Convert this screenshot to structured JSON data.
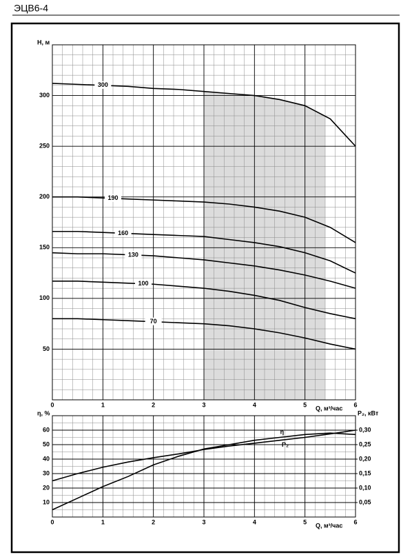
{
  "header": {
    "title": "ЭЦВ6-4"
  },
  "chart_data": [
    {
      "type": "line",
      "x_label": "Q, м³/час",
      "y_label": "H, м",
      "x": [
        0,
        0.5,
        1,
        1.5,
        2,
        2.5,
        3,
        3.5,
        4,
        4.5,
        5,
        5.5,
        6
      ],
      "xlim": [
        0,
        6
      ],
      "xticks": [
        0,
        1,
        2,
        3,
        4,
        5,
        6
      ],
      "ylim": [
        0,
        350
      ],
      "yticks": [
        50,
        100,
        150,
        200,
        250,
        300
      ],
      "grid": true,
      "shaded_range": [
        3,
        5.4
      ],
      "series": [
        {
          "name": "300",
          "color": "#000000",
          "values": [
            312,
            311,
            310,
            309,
            307,
            306,
            304,
            302,
            300,
            296,
            290,
            277,
            250
          ]
        },
        {
          "name": "190",
          "color": "#000000",
          "values": [
            200,
            200,
            199,
            198,
            197,
            196,
            195,
            193,
            190,
            186,
            180,
            170,
            155
          ]
        },
        {
          "name": "160",
          "color": "#000000",
          "values": [
            166,
            166,
            165,
            164,
            163,
            162,
            161,
            158,
            155,
            151,
            145,
            137,
            125
          ]
        },
        {
          "name": "130",
          "color": "#000000",
          "values": [
            145,
            144,
            144,
            143,
            142,
            140,
            138,
            135,
            132,
            128,
            123,
            117,
            110
          ]
        },
        {
          "name": "100",
          "color": "#000000",
          "values": [
            117,
            117,
            116,
            115,
            114,
            112,
            110,
            107,
            103,
            98,
            91,
            85,
            80
          ]
        },
        {
          "name": "70",
          "color": "#000000",
          "values": [
            80,
            80,
            79,
            78,
            77,
            76,
            75,
            73,
            70,
            66,
            61,
            55,
            50
          ]
        }
      ]
    },
    {
      "type": "line",
      "x_label": "Q, м³/час",
      "y_label": "η, %",
      "y2_label": "P₂, кВт",
      "x": [
        0,
        0.5,
        1,
        1.5,
        2,
        2.5,
        3,
        3.5,
        4,
        4.5,
        5,
        5.5,
        6
      ],
      "xlim": [
        0,
        6
      ],
      "xticks": [
        0,
        1,
        2,
        3,
        4,
        5,
        6
      ],
      "ylim": [
        0,
        70
      ],
      "yticks": [
        10,
        20,
        30,
        40,
        50,
        60
      ],
      "y2lim": [
        0,
        0.35
      ],
      "y2ticks": [
        {
          "value": 0.05,
          "label": "0,05"
        },
        {
          "value": 0.1,
          "label": "0,10"
        },
        {
          "value": 0.15,
          "label": "0,15"
        },
        {
          "value": 0.2,
          "label": "0,20"
        },
        {
          "value": 0.25,
          "label": "0,25"
        },
        {
          "value": 0.3,
          "label": "0,30"
        }
      ],
      "grid": true,
      "series": [
        {
          "name": "η",
          "color": "#000000",
          "values": [
            5,
            13,
            21,
            28,
            36,
            42,
            47,
            50,
            53,
            55,
            57,
            58,
            57
          ]
        },
        {
          "name": "P₂",
          "color": "#000000",
          "axis": "y2",
          "values": [
            0.125,
            0.15,
            0.172,
            0.19,
            0.205,
            0.218,
            0.233,
            0.245,
            0.255,
            0.265,
            0.275,
            0.287,
            0.3
          ]
        }
      ]
    }
  ]
}
